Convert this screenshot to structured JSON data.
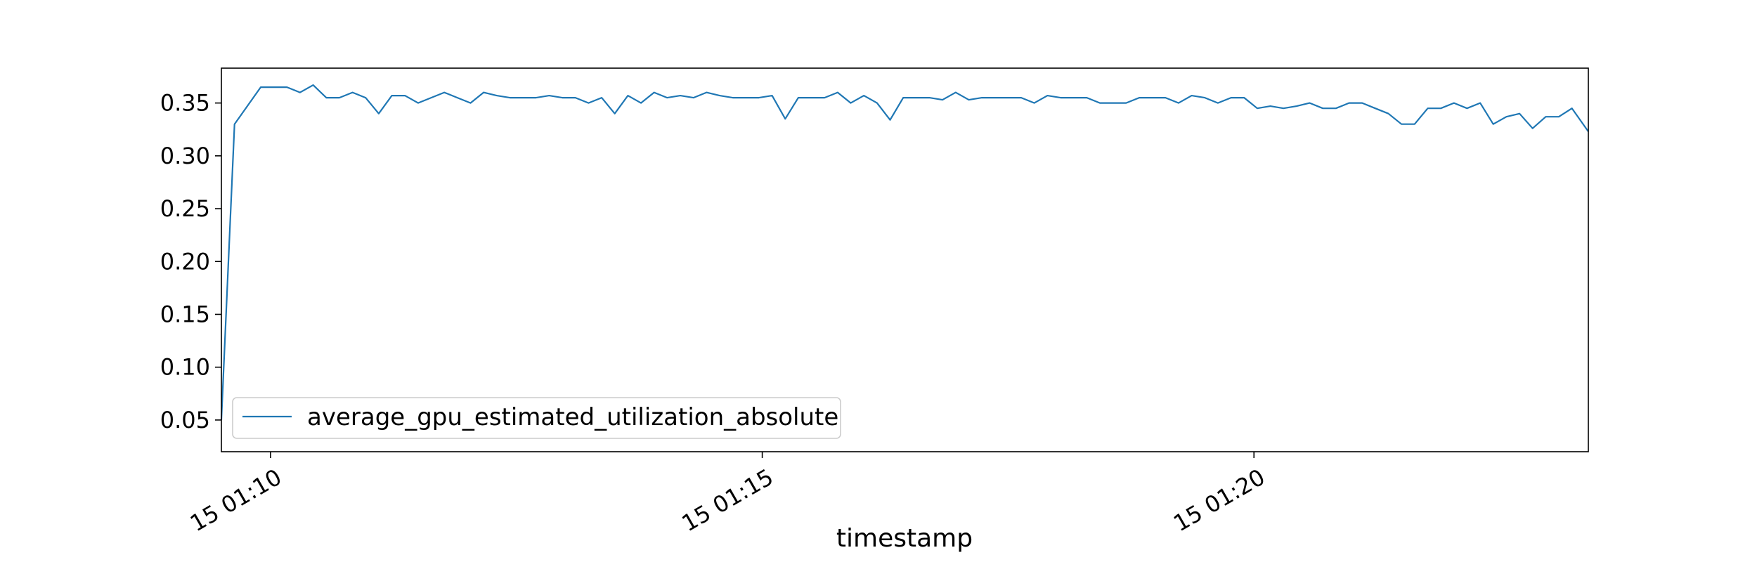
{
  "chart_data": {
    "type": "line",
    "title": "",
    "xlabel": "timestamp",
    "ylabel": "",
    "legend": {
      "location": "lower-left"
    },
    "grid": false,
    "x_axis": {
      "range": [
        "2000-01-15 01:09:30",
        "2000-01-15 01:23:24"
      ],
      "ticks": [
        {
          "value": "2000-01-15 01:10:00",
          "label": "15 01:10"
        },
        {
          "value": "2000-01-15 01:15:00",
          "label": "15 01:15"
        },
        {
          "value": "2000-01-15 01:20:00",
          "label": "15 01:20"
        }
      ]
    },
    "y_axis": {
      "range": [
        0.02,
        0.383
      ],
      "ticks": [
        {
          "value": 0.05,
          "label": "0.05"
        },
        {
          "value": 0.1,
          "label": "0.10"
        },
        {
          "value": 0.15,
          "label": "0.15"
        },
        {
          "value": 0.2,
          "label": "0.20"
        },
        {
          "value": 0.25,
          "label": "0.25"
        },
        {
          "value": 0.3,
          "label": "0.30"
        },
        {
          "value": 0.35,
          "label": "0.35"
        }
      ]
    },
    "series": [
      {
        "name": "average_gpu_estimated_utilization_absolute",
        "color": "#1f77b4",
        "x": [
          "2000-01-15 01:09:30",
          "2000-01-15 01:09:38",
          "2000-01-15 01:09:54",
          "2000-01-15 01:10:02",
          "2000-01-15 01:10:10",
          "2000-01-15 01:10:18",
          "2000-01-15 01:10:26",
          "2000-01-15 01:10:34",
          "2000-01-15 01:10:42",
          "2000-01-15 01:10:50",
          "2000-01-15 01:10:58",
          "2000-01-15 01:11:06",
          "2000-01-15 01:11:14",
          "2000-01-15 01:11:22",
          "2000-01-15 01:11:30",
          "2000-01-15 01:11:38",
          "2000-01-15 01:11:46",
          "2000-01-15 01:11:54",
          "2000-01-15 01:12:02",
          "2000-01-15 01:12:10",
          "2000-01-15 01:12:18",
          "2000-01-15 01:12:26",
          "2000-01-15 01:12:34",
          "2000-01-15 01:12:42",
          "2000-01-15 01:12:50",
          "2000-01-15 01:12:58",
          "2000-01-15 01:13:06",
          "2000-01-15 01:13:14",
          "2000-01-15 01:13:22",
          "2000-01-15 01:13:30",
          "2000-01-15 01:13:38",
          "2000-01-15 01:13:46",
          "2000-01-15 01:13:54",
          "2000-01-15 01:14:02",
          "2000-01-15 01:14:10",
          "2000-01-15 01:14:18",
          "2000-01-15 01:14:26",
          "2000-01-15 01:14:34",
          "2000-01-15 01:14:42",
          "2000-01-15 01:14:50",
          "2000-01-15 01:14:58",
          "2000-01-15 01:15:06",
          "2000-01-15 01:15:14",
          "2000-01-15 01:15:22",
          "2000-01-15 01:15:30",
          "2000-01-15 01:15:38",
          "2000-01-15 01:15:46",
          "2000-01-15 01:15:54",
          "2000-01-15 01:16:02",
          "2000-01-15 01:16:10",
          "2000-01-15 01:16:18",
          "2000-01-15 01:16:26",
          "2000-01-15 01:16:34",
          "2000-01-15 01:16:42",
          "2000-01-15 01:16:50",
          "2000-01-15 01:16:58",
          "2000-01-15 01:17:06",
          "2000-01-15 01:17:14",
          "2000-01-15 01:17:22",
          "2000-01-15 01:17:30",
          "2000-01-15 01:17:38",
          "2000-01-15 01:17:46",
          "2000-01-15 01:17:54",
          "2000-01-15 01:18:02",
          "2000-01-15 01:18:10",
          "2000-01-15 01:18:18",
          "2000-01-15 01:18:26",
          "2000-01-15 01:18:34",
          "2000-01-15 01:18:42",
          "2000-01-15 01:18:50",
          "2000-01-15 01:18:58",
          "2000-01-15 01:19:06",
          "2000-01-15 01:19:14",
          "2000-01-15 01:19:22",
          "2000-01-15 01:19:30",
          "2000-01-15 01:19:38",
          "2000-01-15 01:19:46",
          "2000-01-15 01:19:54",
          "2000-01-15 01:20:02",
          "2000-01-15 01:20:10",
          "2000-01-15 01:20:18",
          "2000-01-15 01:20:26",
          "2000-01-15 01:20:34",
          "2000-01-15 01:20:42",
          "2000-01-15 01:20:50",
          "2000-01-15 01:20:58",
          "2000-01-15 01:21:06",
          "2000-01-15 01:21:14",
          "2000-01-15 01:21:22",
          "2000-01-15 01:21:30",
          "2000-01-15 01:21:38",
          "2000-01-15 01:21:46",
          "2000-01-15 01:21:54",
          "2000-01-15 01:22:02",
          "2000-01-15 01:22:10",
          "2000-01-15 01:22:18",
          "2000-01-15 01:22:26",
          "2000-01-15 01:22:34",
          "2000-01-15 01:22:42",
          "2000-01-15 01:22:50",
          "2000-01-15 01:22:58",
          "2000-01-15 01:23:06",
          "2000-01-15 01:23:14",
          "2000-01-15 01:23:24"
        ],
        "y": [
          0.05,
          0.33,
          0.365,
          0.365,
          0.365,
          0.36,
          0.367,
          0.355,
          0.355,
          0.36,
          0.355,
          0.34,
          0.357,
          0.357,
          0.35,
          0.355,
          0.36,
          0.355,
          0.35,
          0.36,
          0.357,
          0.355,
          0.355,
          0.355,
          0.357,
          0.355,
          0.355,
          0.35,
          0.355,
          0.34,
          0.357,
          0.35,
          0.36,
          0.355,
          0.357,
          0.355,
          0.36,
          0.357,
          0.355,
          0.355,
          0.355,
          0.357,
          0.335,
          0.355,
          0.355,
          0.355,
          0.36,
          0.35,
          0.357,
          0.35,
          0.334,
          0.355,
          0.355,
          0.355,
          0.353,
          0.36,
          0.353,
          0.355,
          0.355,
          0.355,
          0.355,
          0.35,
          0.357,
          0.355,
          0.355,
          0.355,
          0.35,
          0.35,
          0.35,
          0.355,
          0.355,
          0.355,
          0.35,
          0.357,
          0.355,
          0.35,
          0.355,
          0.355,
          0.345,
          0.347,
          0.345,
          0.347,
          0.35,
          0.345,
          0.345,
          0.35,
          0.35,
          0.345,
          0.34,
          0.33,
          0.33,
          0.345,
          0.345,
          0.35,
          0.345,
          0.35,
          0.33,
          0.337,
          0.34,
          0.326,
          0.337,
          0.337,
          0.345,
          0.323
        ]
      }
    ]
  }
}
